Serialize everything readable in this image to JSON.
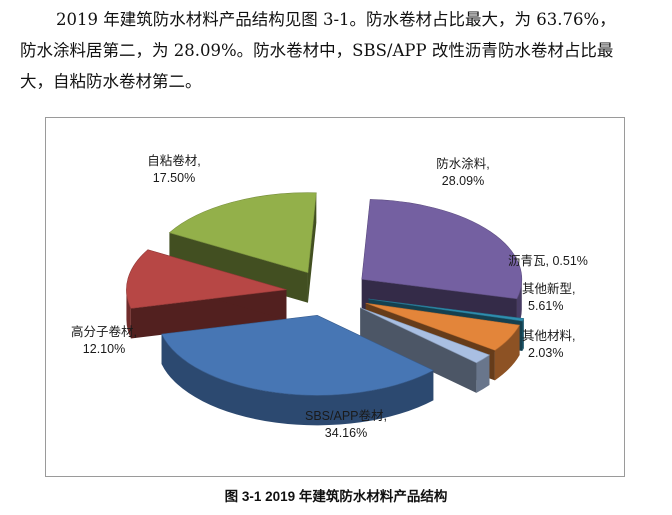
{
  "paragraph": {
    "line1": "2019 年建筑防水材料产品结构见图 3-1。防水卷材占比最大，为 63.76%，",
    "line2": "防水涂料居第二，为 28.09%。防水卷材中，SBS/APP 改性沥青防水卷材占比最",
    "line3": "大，自粘防水卷材第二。"
  },
  "caption": "图  3-1 2019 年建筑防水材料产品结构",
  "chart_data": {
    "type": "pie",
    "style": "3d-exploded",
    "unit": "%",
    "slices": [
      {
        "label": "防水涂料",
        "value": 28.09,
        "value_label": "28.09%",
        "color": "#7460a1"
      },
      {
        "label": "沥青瓦",
        "value": 0.51,
        "value_label": "0.51%",
        "color": "#2f8fb0"
      },
      {
        "label": "其他新型",
        "value": 5.61,
        "value_label": "5.61%",
        "color": "#e3853a"
      },
      {
        "label": "其他材料",
        "value": 2.03,
        "value_label": "2.03%",
        "color": "#a9bfe2"
      },
      {
        "label": "SBS/APP卷材",
        "value": 34.16,
        "value_label": "34.16%",
        "color": "#4776b4"
      },
      {
        "label": "高分子卷材",
        "value": 12.1,
        "value_label": "12.10%",
        "color": "#b74745"
      },
      {
        "label": "自粘卷材",
        "value": 17.5,
        "value_label": "17.50%",
        "color": "#93b04a"
      }
    ]
  }
}
